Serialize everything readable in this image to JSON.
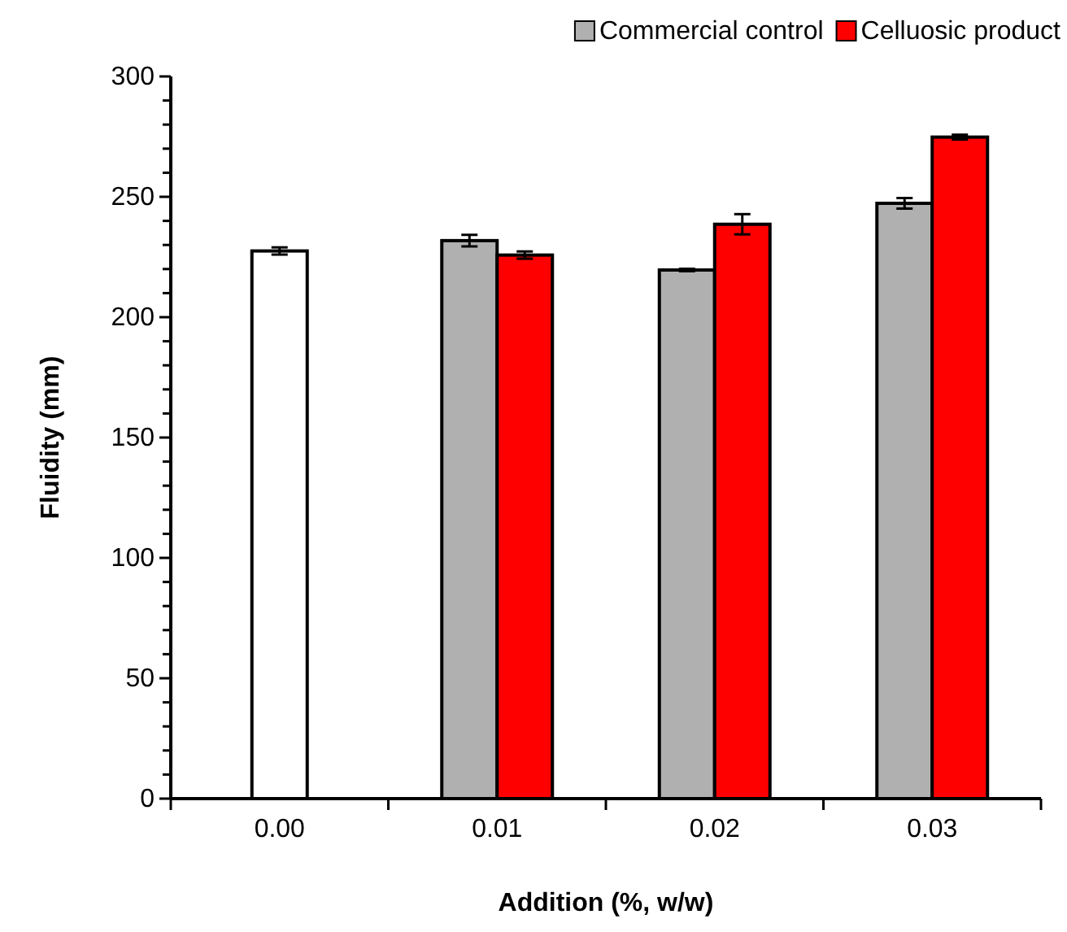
{
  "chart_data": {
    "type": "bar",
    "xlabel": "Addition (%, w/w)",
    "ylabel": "Fluidity (mm)",
    "categories": [
      "0.00",
      "0.01",
      "0.02",
      "0.03"
    ],
    "series": [
      {
        "color": "#ffffff",
        "values": [
          227.5,
          null,
          null,
          null
        ],
        "errors": [
          1.5,
          null,
          null,
          null
        ]
      },
      {
        "name": "Commercial control",
        "color": "#b0b0b0",
        "values": [
          null,
          231.8,
          219.6,
          247.3
        ],
        "errors": [
          null,
          2.4,
          0.5,
          2.2
        ]
      },
      {
        "name": "Celluosic product",
        "color": "#ff0000",
        "values": [
          null,
          225.8,
          238.6,
          274.8
        ],
        "errors": [
          null,
          1.5,
          4.2,
          1
        ]
      }
    ],
    "ylim": [
      0,
      300
    ],
    "yticks": [
      0,
      {
        "value": 10,
        "label": null
      },
      {
        "value": 20,
        "label": null
      },
      {
        "value": 30,
        "label": null
      },
      {
        "value": 40,
        "label": null
      },
      50,
      {
        "value": 60,
        "label": null
      },
      {
        "value": 70,
        "label": null
      },
      {
        "value": 80,
        "label": null
      },
      {
        "value": 90,
        "label": null
      },
      100,
      {
        "value": 110,
        "label": null
      },
      {
        "value": 120,
        "label": null
      },
      {
        "value": 130,
        "label": null
      },
      {
        "value": 140,
        "label": null
      },
      150,
      {
        "value": 160,
        "label": null
      },
      {
        "value": 170,
        "label": null
      },
      {
        "value": 180,
        "label": null
      },
      {
        "value": 190,
        "label": null
      },
      200,
      {
        "value": 210,
        "label": null
      },
      {
        "value": 220,
        "label": null
      },
      {
        "value": 230,
        "label": null
      },
      {
        "value": 240,
        "label": null
      },
      250,
      {
        "value": 260,
        "label": null
      },
      {
        "value": 270,
        "label": null
      },
      {
        "value": 280,
        "label": null
      },
      {
        "value": 290,
        "label": null
      },
      300
    ],
    "grid": false,
    "legend": "top right"
  }
}
